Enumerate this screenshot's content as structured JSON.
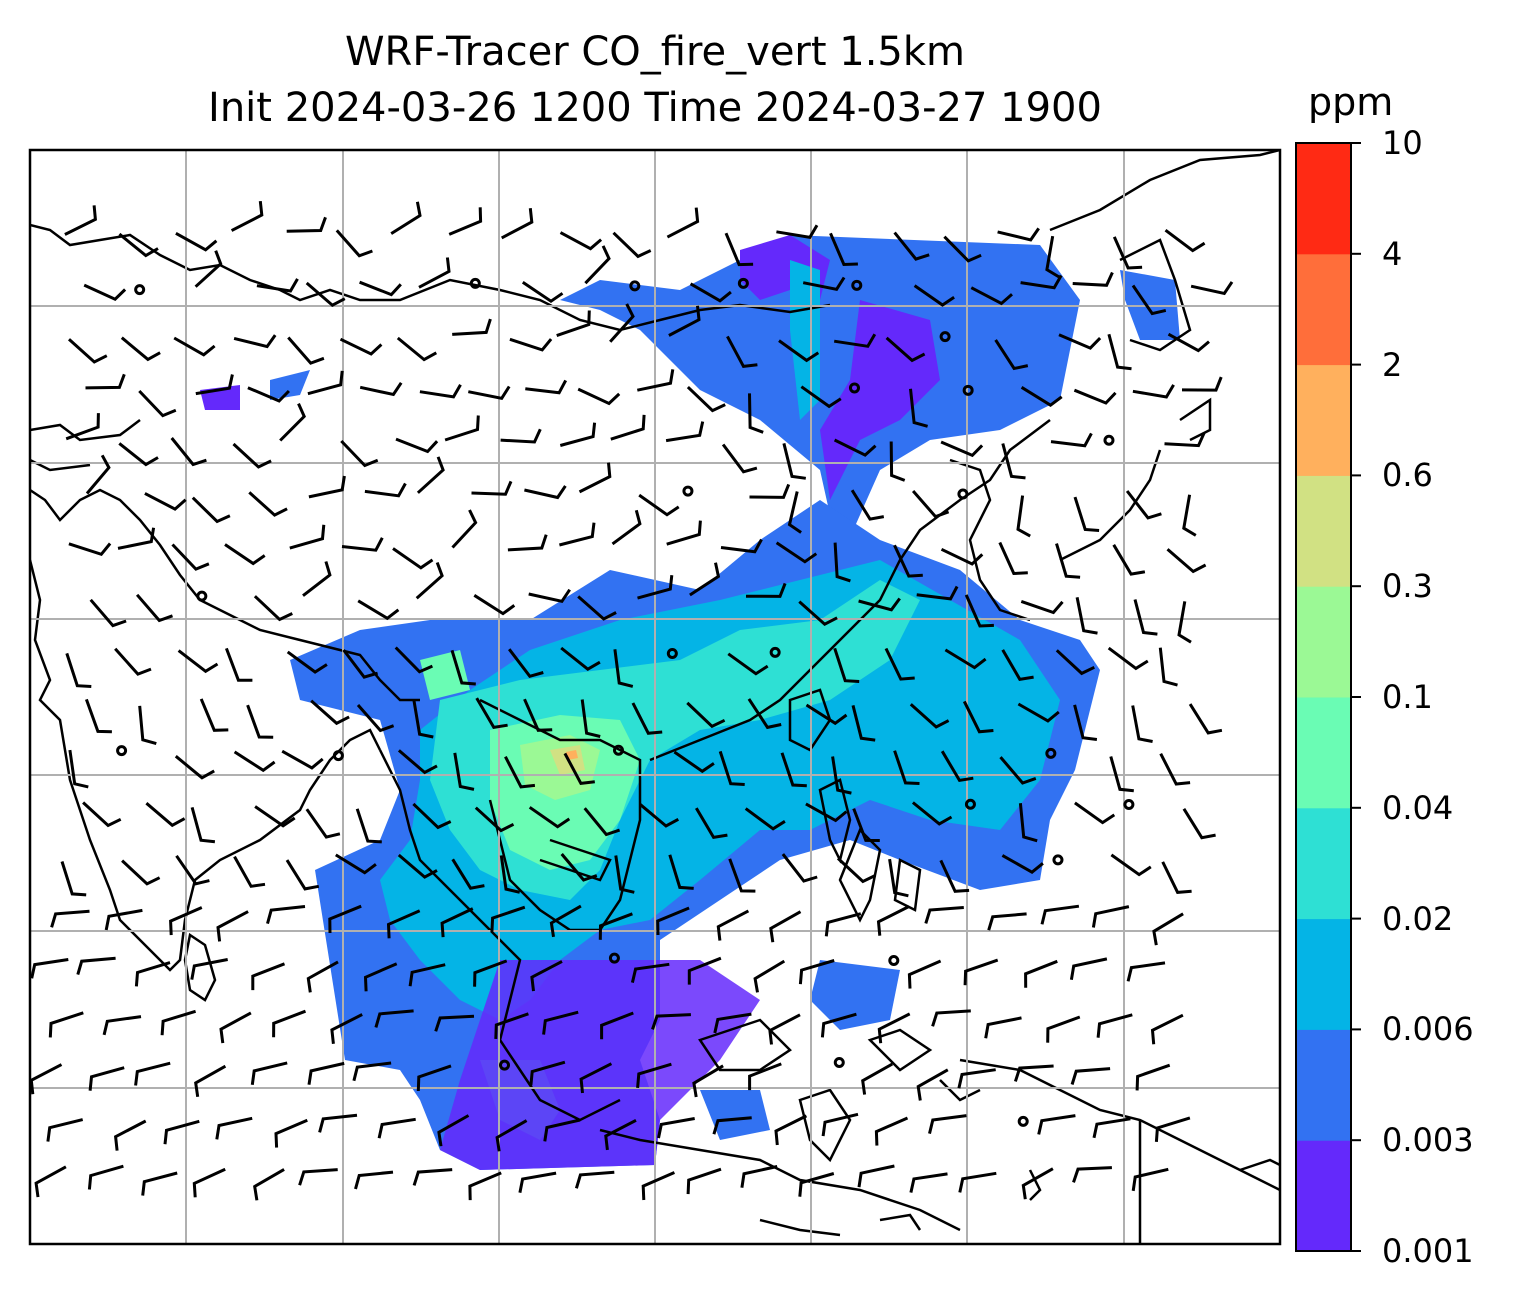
{
  "title": {
    "line1": "WRF-Tracer CO_fire_vert 1.5km",
    "line2": "Init 2024-03-26 1200 Time 2024-03-27 1900"
  },
  "colorbar": {
    "unit": "ppm",
    "levels": [
      "0.001",
      "0.003",
      "0.006",
      "0.02",
      "0.04",
      "0.1",
      "0.3",
      "0.6",
      "2",
      "4",
      "10"
    ],
    "colors": [
      "#6429fb",
      "#3272f2",
      "#04b4e6",
      "#2ee0d4",
      "#6afcb4",
      "#9bf995",
      "#d1e183",
      "#ffb05d",
      "#ff6e3a",
      "#ff2a14"
    ]
  },
  "map": {
    "type": "filled contour map with wind barbs",
    "field": "CO_fire_vert",
    "gridlines": true,
    "wind_barbs": true
  }
}
